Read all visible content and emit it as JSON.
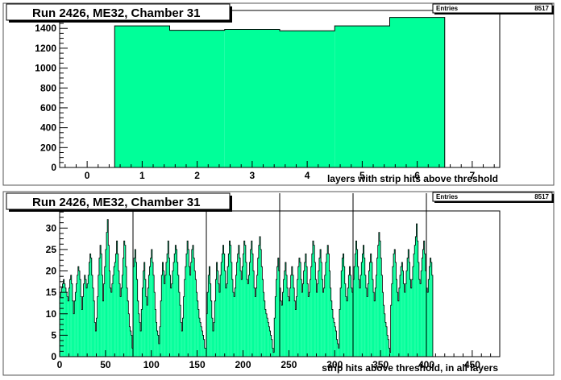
{
  "chart_data": [
    {
      "type": "bar",
      "title": "Run 2426, ME32, Chamber 31",
      "xlabel": "layers with strip hits above threshold",
      "ylabel": "",
      "xlim": [
        -0.5,
        7.5
      ],
      "ylim": [
        0,
        1580
      ],
      "xticks": [
        0,
        1,
        2,
        3,
        4,
        5,
        6,
        7
      ],
      "yticks": [
        0,
        200,
        400,
        600,
        800,
        1000,
        1200,
        1400
      ],
      "categories": [
        1,
        2,
        3,
        4,
        5,
        6
      ],
      "values": [
        1425,
        1380,
        1390,
        1375,
        1425,
        1510
      ],
      "stats": {
        "label": "Entries",
        "value": "8517"
      },
      "fill_color": "#00ff99",
      "line_color": "#000000"
    },
    {
      "type": "bar",
      "title": "Run 2426, ME32, Chamber 31",
      "xlabel": "strip hits above threshold, in all layers",
      "ylabel": "",
      "xlim": [
        0,
        480
      ],
      "ylim": [
        0,
        34
      ],
      "xticks": [
        0,
        50,
        100,
        150,
        200,
        250,
        300,
        350,
        400,
        450
      ],
      "yticks": [
        0,
        5,
        10,
        15,
        20,
        25,
        30
      ],
      "layer_boundaries": [
        80,
        160,
        240,
        320,
        400
      ],
      "bin_width": 1,
      "values": [
        14,
        15,
        16,
        17,
        18,
        17,
        16,
        15,
        14,
        13,
        16,
        18,
        19,
        17,
        13,
        10,
        13,
        15,
        17,
        19,
        21,
        20,
        18,
        14,
        11,
        14,
        17,
        19,
        18,
        16,
        17,
        19,
        22,
        24,
        23,
        19,
        16,
        13,
        8,
        6,
        9,
        14,
        19,
        23,
        26,
        24,
        19,
        13,
        17,
        21,
        25,
        29,
        32,
        26,
        20,
        16,
        15,
        17,
        19,
        21,
        22,
        24,
        27,
        24,
        20,
        17,
        14,
        16,
        19,
        23,
        27,
        26,
        21,
        16,
        13,
        10,
        7,
        6,
        5,
        2,
        21,
        23,
        25,
        22,
        18,
        13,
        10,
        8,
        6,
        11,
        16,
        20,
        22,
        18,
        14,
        12,
        16,
        19,
        21,
        23,
        25,
        22,
        19,
        15,
        11,
        8,
        6,
        5,
        3,
        7,
        13,
        19,
        22,
        20,
        17,
        19,
        22,
        24,
        27,
        23,
        19,
        16,
        17,
        20,
        22,
        24,
        26,
        25,
        22,
        19,
        15,
        12,
        8,
        6,
        9,
        14,
        18,
        21,
        24,
        27,
        25,
        21,
        19,
        22,
        25,
        26,
        23,
        20,
        18,
        15,
        13,
        11,
        9,
        8,
        7,
        6,
        5,
        4,
        2,
        2,
        10,
        15,
        19,
        21,
        17,
        13,
        9,
        6,
        8,
        13,
        18,
        22,
        20,
        17,
        15,
        19,
        22,
        24,
        26,
        24,
        20,
        16,
        17,
        21,
        24,
        27,
        26,
        22,
        18,
        15,
        14,
        16,
        19,
        22,
        24,
        26,
        23,
        20,
        18,
        21,
        24,
        27,
        26,
        22,
        18,
        17,
        19,
        22,
        25,
        27,
        24,
        20,
        16,
        14,
        16,
        19,
        23,
        26,
        28,
        25,
        21,
        18,
        15,
        13,
        11,
        10,
        9,
        8,
        7,
        6,
        5,
        4,
        2,
        1,
        9,
        14,
        18,
        21,
        23,
        20,
        16,
        13,
        12,
        15,
        18,
        20,
        22,
        19,
        16,
        14,
        13,
        16,
        19,
        21,
        19,
        16,
        13,
        11,
        14,
        18,
        21,
        23,
        22,
        18,
        15,
        17,
        20,
        22,
        24,
        21,
        17,
        14,
        15,
        18,
        21,
        24,
        27,
        26,
        22,
        18,
        15,
        17,
        20,
        23,
        25,
        22,
        18,
        15,
        16,
        19,
        22,
        24,
        26,
        24,
        20,
        16,
        13,
        11,
        9,
        8,
        7,
        6,
        4,
        3,
        2,
        11,
        16,
        20,
        23,
        24,
        21,
        17,
        14,
        13,
        16,
        19,
        21,
        19,
        16,
        15,
        18,
        21,
        24,
        27,
        25,
        21,
        18,
        16,
        19,
        22,
        24,
        26,
        23,
        19,
        16,
        14,
        17,
        20,
        22,
        24,
        22,
        18,
        15,
        13,
        16,
        19,
        23,
        26,
        29,
        27,
        23,
        19,
        15,
        12,
        10,
        8,
        7,
        5,
        4,
        2,
        1,
        12,
        17,
        21,
        24,
        25,
        22,
        18,
        15,
        13,
        16,
        19,
        21,
        22,
        20,
        17,
        15,
        17,
        20,
        23,
        25,
        22,
        18,
        16,
        18,
        21,
        24,
        26,
        28,
        31,
        27,
        22,
        18,
        17,
        20,
        23,
        25,
        27,
        24,
        20,
        16,
        15,
        18,
        21,
        23,
        22,
        19
      ]
    }
  ],
  "colors": {
    "fill": "#00ff99",
    "outline": "#000000",
    "frame": "#555555",
    "background": "#ffffff"
  }
}
